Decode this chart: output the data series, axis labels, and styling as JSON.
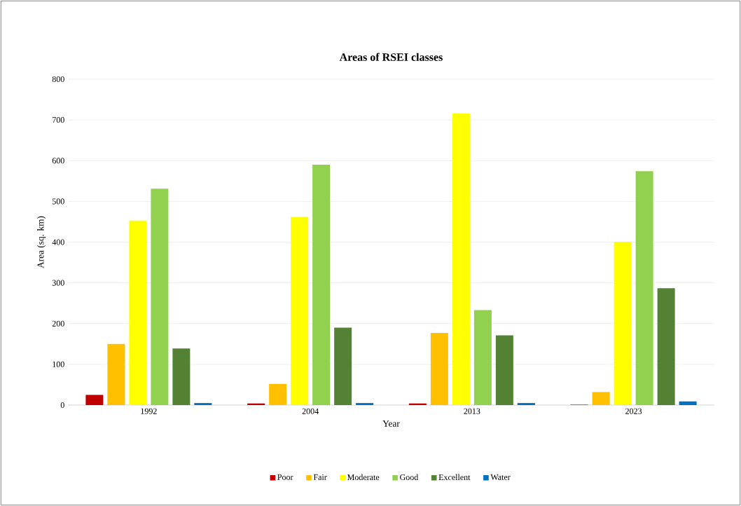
{
  "chart_data": {
    "type": "bar",
    "title": "Areas of RSEI classes",
    "xlabel": "Year",
    "ylabel": "Area (sq. km)",
    "categories": [
      "1992",
      "2004",
      "2013",
      "2023"
    ],
    "series": [
      {
        "name": "Poor",
        "color": "#c00000",
        "values": [
          25,
          4,
          4,
          1
        ]
      },
      {
        "name": "Fair",
        "color": "#ffc000",
        "values": [
          150,
          52,
          177,
          32
        ]
      },
      {
        "name": "Moderate",
        "color": "#ffff00",
        "values": [
          453,
          462,
          716,
          401
        ]
      },
      {
        "name": "Good",
        "color": "#92d050",
        "values": [
          531,
          590,
          233,
          574
        ]
      },
      {
        "name": "Excellent",
        "color": "#548235",
        "values": [
          139,
          190,
          171,
          287
        ]
      },
      {
        "name": "Water",
        "color": "#0070c0",
        "values": [
          5,
          5,
          5,
          9
        ]
      }
    ],
    "ylim": [
      0,
      800
    ],
    "yticks": [
      0,
      100,
      200,
      300,
      400,
      500,
      600,
      700,
      800
    ],
    "grid": "y",
    "legend": "bottom"
  }
}
